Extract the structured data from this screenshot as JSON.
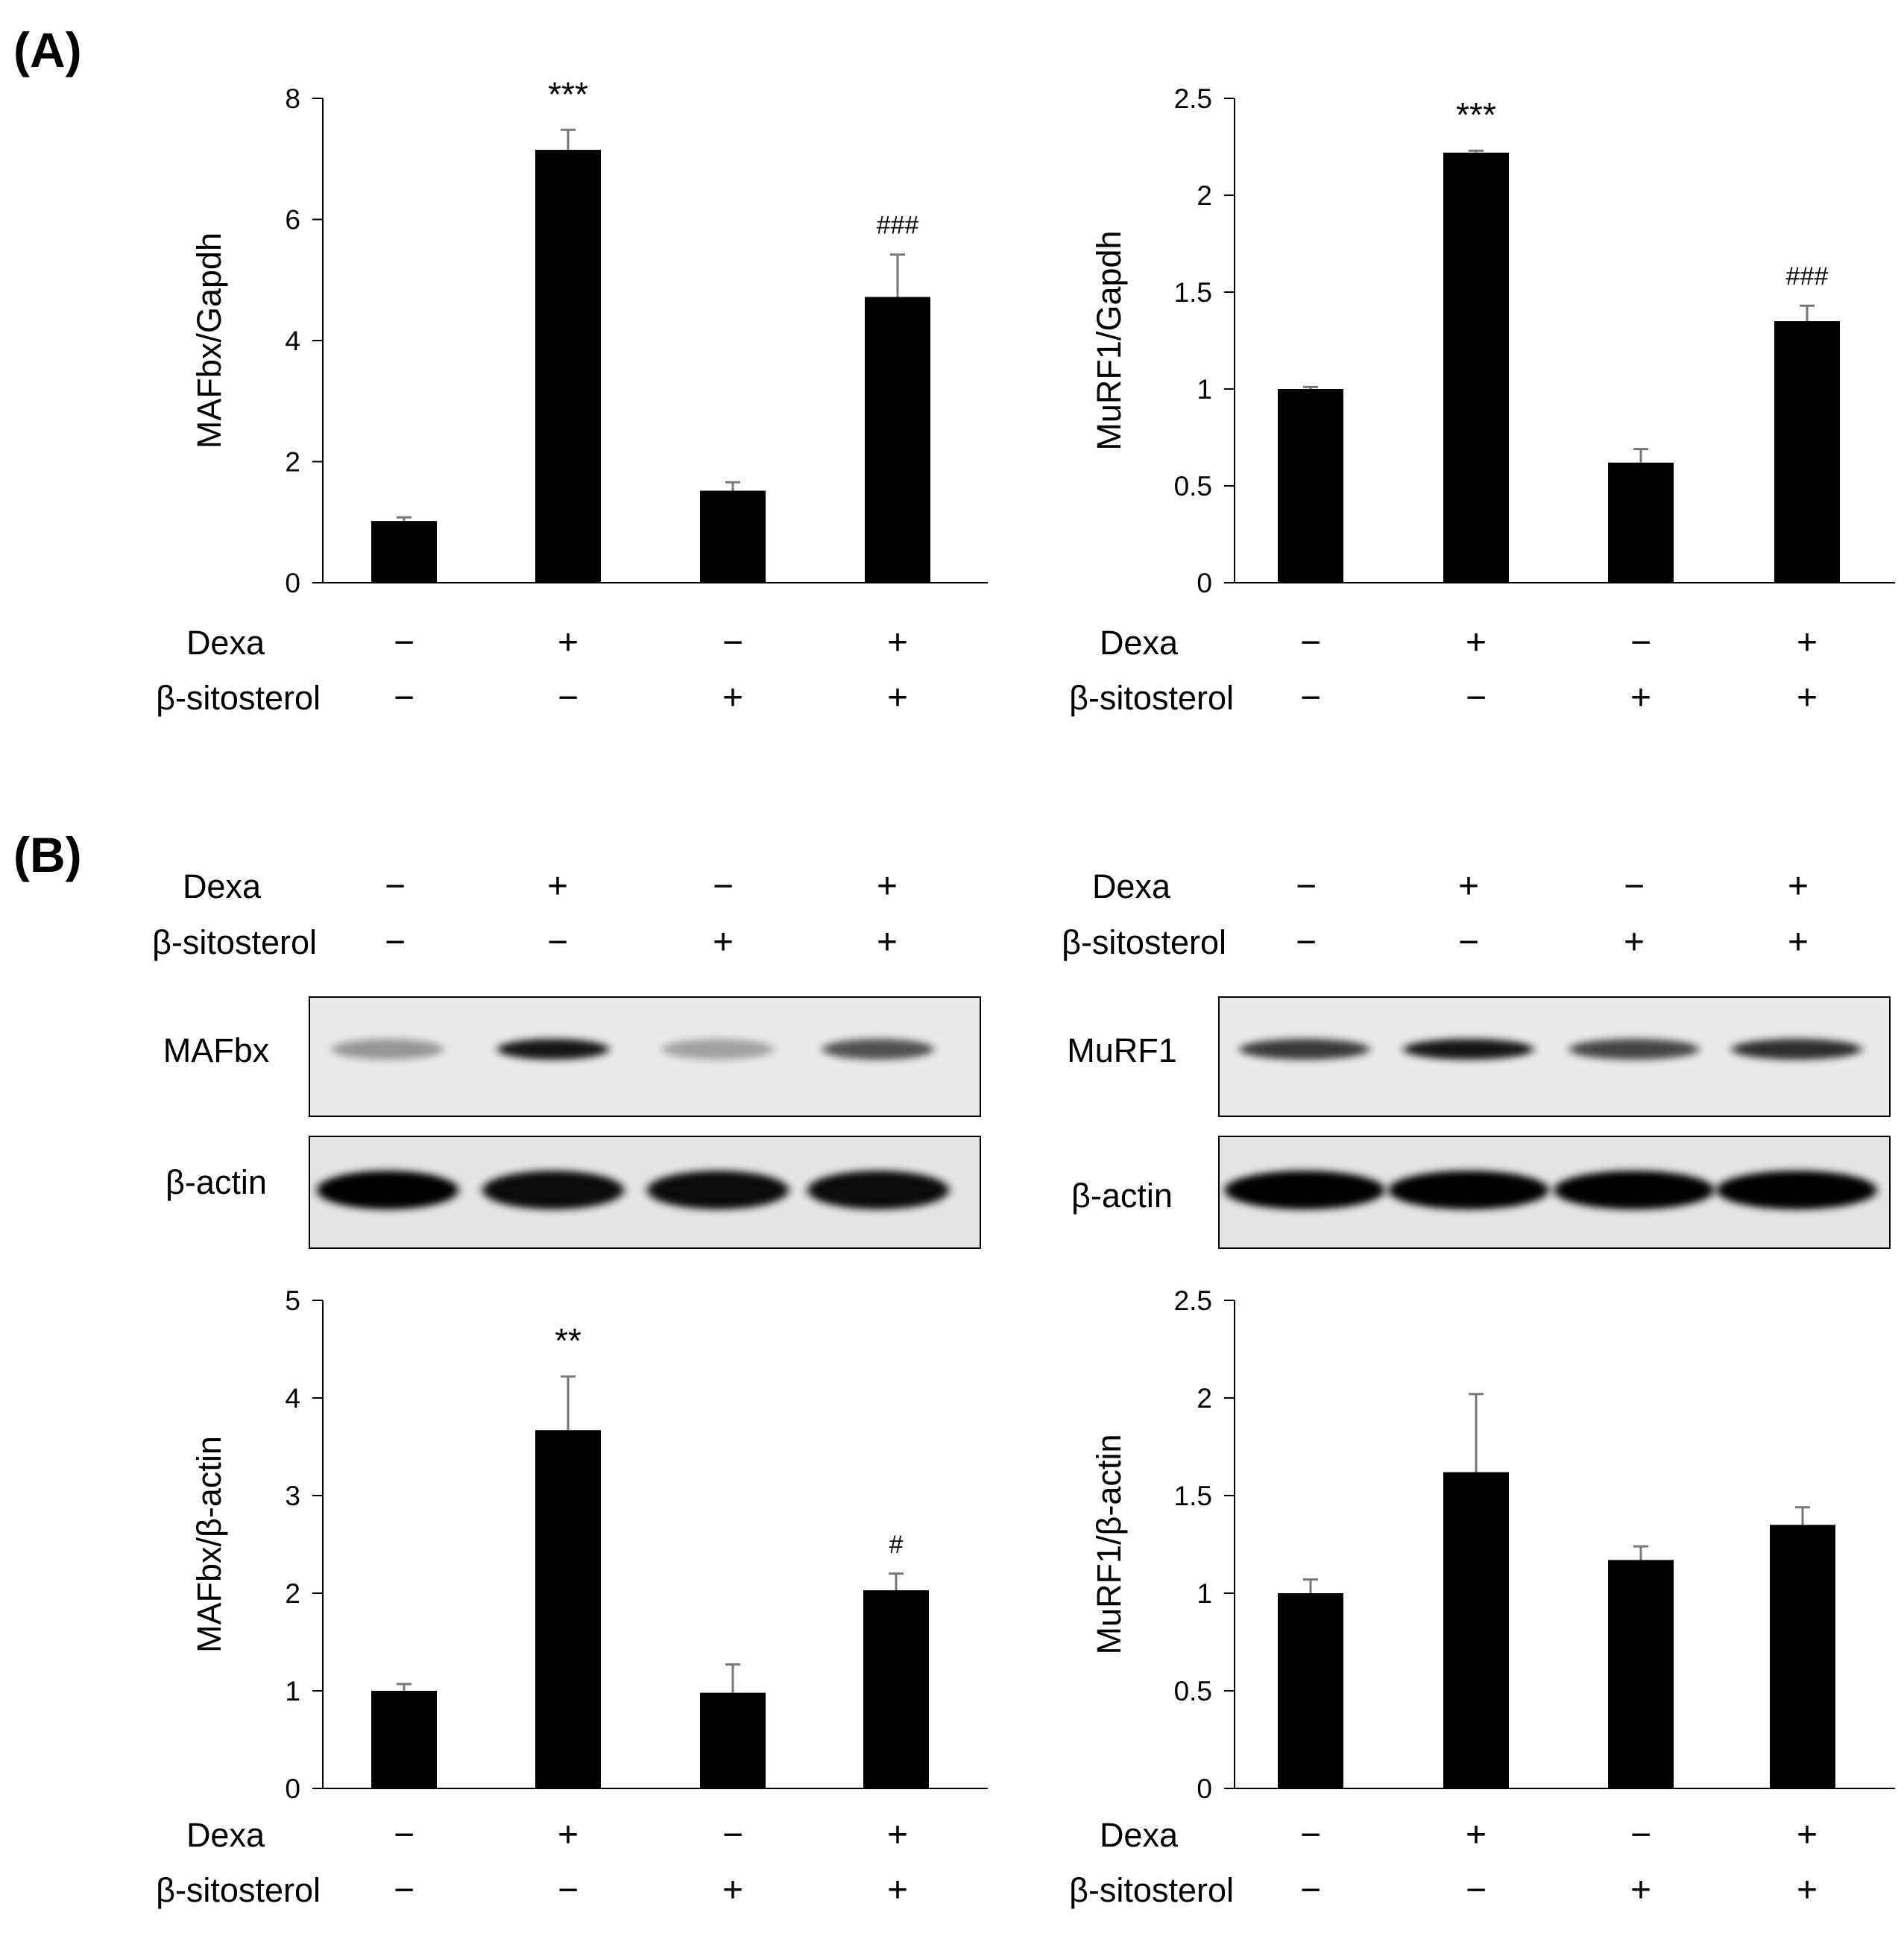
{
  "panels": [
    {
      "label": "(A)"
    },
    {
      "label": "(B)"
    }
  ],
  "conditions": {
    "row_labels": [
      "Dexa",
      "β-sitosterol"
    ],
    "dexa": [
      "−",
      "+",
      "−",
      "+"
    ],
    "sitosterol": [
      "−",
      "−",
      "+",
      "+"
    ]
  },
  "blots": {
    "left": {
      "target": "MAFbx",
      "control": "β-actin",
      "target_intensity": [
        0.35,
        0.9,
        0.3,
        0.65
      ],
      "control_intensity": [
        1,
        0.95,
        0.95,
        0.95
      ]
    },
    "right": {
      "target": "MuRF1",
      "control": "β-actin",
      "target_intensity": [
        0.75,
        0.9,
        0.7,
        0.8
      ],
      "control_intensity": [
        1,
        1,
        1,
        1
      ]
    }
  },
  "chart_data": [
    {
      "type": "bar",
      "panel": "A",
      "ylabel": "MAFbx/Gapdh",
      "ylim": [
        0,
        8
      ],
      "yticks": [
        "0",
        "2",
        "4",
        "6",
        "8"
      ],
      "ytick_values": [
        0,
        2,
        4,
        6,
        8
      ],
      "values": [
        1.02,
        7.15,
        1.52,
        4.72
      ],
      "errors": [
        0.06,
        0.33,
        0.14,
        0.7
      ],
      "annotations": [
        "",
        "***",
        "",
        "###"
      ]
    },
    {
      "type": "bar",
      "panel": "A",
      "ylabel": "MuRF1/Gapdh",
      "ylim": [
        0,
        2.5
      ],
      "yticks": [
        "0",
        "0.5",
        "1",
        "1.5",
        "2",
        "2.5"
      ],
      "ytick_values": [
        0,
        0.5,
        1,
        1.5,
        2,
        2.5
      ],
      "values": [
        1.0,
        2.22,
        0.62,
        1.35
      ],
      "errors": [
        0.01,
        0.01,
        0.07,
        0.08
      ],
      "annotations": [
        "",
        "***",
        "",
        "###"
      ]
    },
    {
      "type": "bar",
      "panel": "B",
      "ylabel": "MAFbx/β-actin",
      "ylim": [
        0,
        5
      ],
      "yticks": [
        "0",
        "1",
        "2",
        "3",
        "4",
        "5"
      ],
      "ytick_values": [
        0,
        1,
        2,
        3,
        4,
        5
      ],
      "values": [
        1.0,
        3.67,
        0.98,
        2.03
      ],
      "errors": [
        0.07,
        0.55,
        0.29,
        0.17
      ],
      "annotations": [
        "",
        "**",
        "",
        "#"
      ]
    },
    {
      "type": "bar",
      "panel": "B",
      "ylabel": "MuRF1/β-actin",
      "ylim": [
        0,
        2.5
      ],
      "yticks": [
        "0",
        "0.5",
        "1",
        "1.5",
        "2",
        "2.5"
      ],
      "ytick_values": [
        0,
        0.5,
        1,
        1.5,
        2,
        2.5
      ],
      "values": [
        1.0,
        1.62,
        1.17,
        1.35
      ],
      "errors": [
        0.07,
        0.4,
        0.07,
        0.09
      ],
      "annotations": [
        "",
        "",
        "",
        ""
      ]
    }
  ]
}
